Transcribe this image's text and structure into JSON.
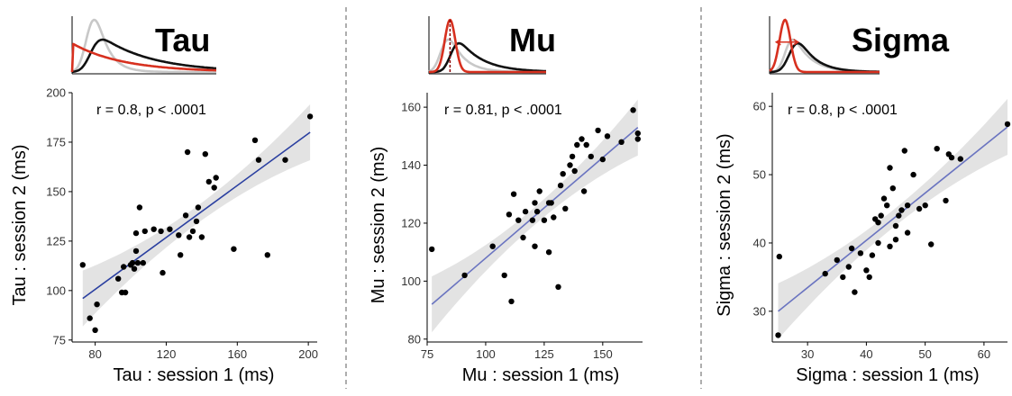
{
  "figure": {
    "panels": [
      {
        "title": "Tau",
        "stat": "r = 0.8, p < .0001",
        "xlabel": "Tau : session 1 (ms)",
        "ylabel": "Tau : session 2 (ms)",
        "xticks": [
          "80",
          "120",
          "160",
          "200"
        ],
        "yticks": [
          "75",
          "100",
          "125",
          "150",
          "175",
          "200"
        ]
      },
      {
        "title": "Mu",
        "stat": "r = 0.81, p < .0001",
        "xlabel": "Mu : session 1 (ms)",
        "ylabel": "Mu : session 2 (ms)",
        "xticks": [
          "75",
          "100",
          "125",
          "150"
        ],
        "yticks": [
          "80",
          "100",
          "120",
          "140",
          "160"
        ]
      },
      {
        "title": "Sigma",
        "stat": "r = 0.8, p < .0001",
        "xlabel": "Sigma : session 1 (ms)",
        "ylabel": "Sigma : session 2 (ms)",
        "xticks": [
          "30",
          "40",
          "50",
          "60"
        ],
        "yticks": [
          "30",
          "40",
          "50",
          "60"
        ]
      }
    ]
  },
  "colors": {
    "points": "#000000",
    "fit_line_tau": "#2a3fa0",
    "fit_line": "#6a74c0",
    "ci_band": "#e3e3e3",
    "curve_gray": "#c8c8c8",
    "curve_black": "#111111",
    "curve_red": "#d7301f",
    "divider": "#777777"
  },
  "chart_data": [
    {
      "type": "scatter",
      "title": "Tau",
      "annotation": "r = 0.8, p < .0001",
      "xlabel": "Tau : session 1 (ms)",
      "ylabel": "Tau : session 2 (ms)",
      "xlim": [
        67,
        205
      ],
      "ylim": [
        74,
        200
      ],
      "xticks": [
        80,
        120,
        160,
        200
      ],
      "yticks": [
        75,
        100,
        125,
        150,
        175,
        200
      ],
      "fit": {
        "x": [
          73,
          201
        ],
        "y": [
          96,
          180
        ]
      },
      "points": [
        [
          73,
          113
        ],
        [
          77,
          86
        ],
        [
          80,
          80
        ],
        [
          81,
          93
        ],
        [
          93,
          106
        ],
        [
          95,
          99
        ],
        [
          96,
          112
        ],
        [
          97,
          99
        ],
        [
          100,
          113
        ],
        [
          101,
          114
        ],
        [
          102,
          111
        ],
        [
          103,
          120
        ],
        [
          103,
          129
        ],
        [
          104,
          114
        ],
        [
          105,
          142
        ],
        [
          107,
          114
        ],
        [
          108,
          130
        ],
        [
          113,
          131
        ],
        [
          117,
          130
        ],
        [
          118,
          109
        ],
        [
          122,
          131
        ],
        [
          127,
          128
        ],
        [
          128,
          118
        ],
        [
          131,
          138
        ],
        [
          132,
          170
        ],
        [
          133,
          127
        ],
        [
          135,
          130
        ],
        [
          137,
          135
        ],
        [
          138,
          142
        ],
        [
          140,
          127
        ],
        [
          142,
          169
        ],
        [
          144,
          155
        ],
        [
          147,
          152
        ],
        [
          148,
          157
        ],
        [
          158,
          121
        ],
        [
          170,
          176
        ],
        [
          172,
          166
        ],
        [
          177,
          118
        ],
        [
          187,
          166
        ],
        [
          201,
          188
        ]
      ]
    },
    {
      "type": "scatter",
      "title": "Mu",
      "annotation": "r = 0.81, p < .0001",
      "xlabel": "Mu : session 1 (ms)",
      "ylabel": "Mu : session 2 (ms)",
      "xlim": [
        75,
        167
      ],
      "ylim": [
        79,
        165
      ],
      "xticks": [
        75,
        100,
        125,
        150
      ],
      "yticks": [
        80,
        100,
        120,
        140,
        160
      ],
      "fit": {
        "x": [
          77,
          165
        ],
        "y": [
          92,
          153
        ]
      },
      "points": [
        [
          77,
          111
        ],
        [
          91,
          102
        ],
        [
          103,
          112
        ],
        [
          108,
          102
        ],
        [
          110,
          123
        ],
        [
          111,
          93
        ],
        [
          112,
          130
        ],
        [
          114,
          121
        ],
        [
          116,
          115
        ],
        [
          117,
          124
        ],
        [
          120,
          121
        ],
        [
          121,
          112
        ],
        [
          121,
          127
        ],
        [
          122,
          124
        ],
        [
          123,
          131
        ],
        [
          125,
          121
        ],
        [
          127,
          110
        ],
        [
          127,
          127
        ],
        [
          128,
          127
        ],
        [
          129,
          122
        ],
        [
          131,
          98
        ],
        [
          132,
          133
        ],
        [
          133,
          137
        ],
        [
          134,
          125
        ],
        [
          136,
          140
        ],
        [
          137,
          143
        ],
        [
          138,
          138
        ],
        [
          139,
          147
        ],
        [
          141,
          149
        ],
        [
          142,
          131
        ],
        [
          143,
          147
        ],
        [
          145,
          143
        ],
        [
          148,
          152
        ],
        [
          150,
          142
        ],
        [
          152,
          150
        ],
        [
          158,
          148
        ],
        [
          163,
          159
        ],
        [
          165,
          151
        ],
        [
          165,
          149
        ]
      ]
    },
    {
      "type": "scatter",
      "title": "Sigma",
      "annotation": "r = 0.8, p < .0001",
      "xlabel": "Sigma : session 1 (ms)",
      "ylabel": "Sigma : session 2 (ms)",
      "xlim": [
        24,
        64
      ],
      "ylim": [
        25.5,
        62
      ],
      "xticks": [
        30,
        40,
        50,
        60
      ],
      "yticks": [
        30,
        40,
        50,
        60
      ],
      "fit": {
        "x": [
          25,
          64
        ],
        "y": [
          30,
          57
        ]
      },
      "points": [
        [
          25,
          26.5
        ],
        [
          25.2,
          38
        ],
        [
          33,
          35.5
        ],
        [
          35,
          37.5
        ],
        [
          36,
          35
        ],
        [
          37,
          36.5
        ],
        [
          37.5,
          39.2
        ],
        [
          38,
          32.8
        ],
        [
          39,
          38.5
        ],
        [
          40,
          36
        ],
        [
          40.5,
          35
        ],
        [
          41,
          38.2
        ],
        [
          41.5,
          43.5
        ],
        [
          42,
          43
        ],
        [
          42,
          40
        ],
        [
          42.5,
          44
        ],
        [
          43,
          46.5
        ],
        [
          43.5,
          45.5
        ],
        [
          44,
          51
        ],
        [
          44,
          39.5
        ],
        [
          44.5,
          48
        ],
        [
          45,
          42.5
        ],
        [
          45,
          40.5
        ],
        [
          45.5,
          44
        ],
        [
          46,
          44.8
        ],
        [
          46.5,
          53.5
        ],
        [
          47,
          45.5
        ],
        [
          47,
          41.5
        ],
        [
          48,
          50
        ],
        [
          49,
          45
        ],
        [
          50,
          45.5
        ],
        [
          51,
          39.8
        ],
        [
          52,
          53.8
        ],
        [
          53.5,
          46.2
        ],
        [
          54,
          53
        ],
        [
          54.5,
          52.5
        ],
        [
          56,
          52.3
        ],
        [
          64,
          57.4
        ]
      ]
    }
  ]
}
